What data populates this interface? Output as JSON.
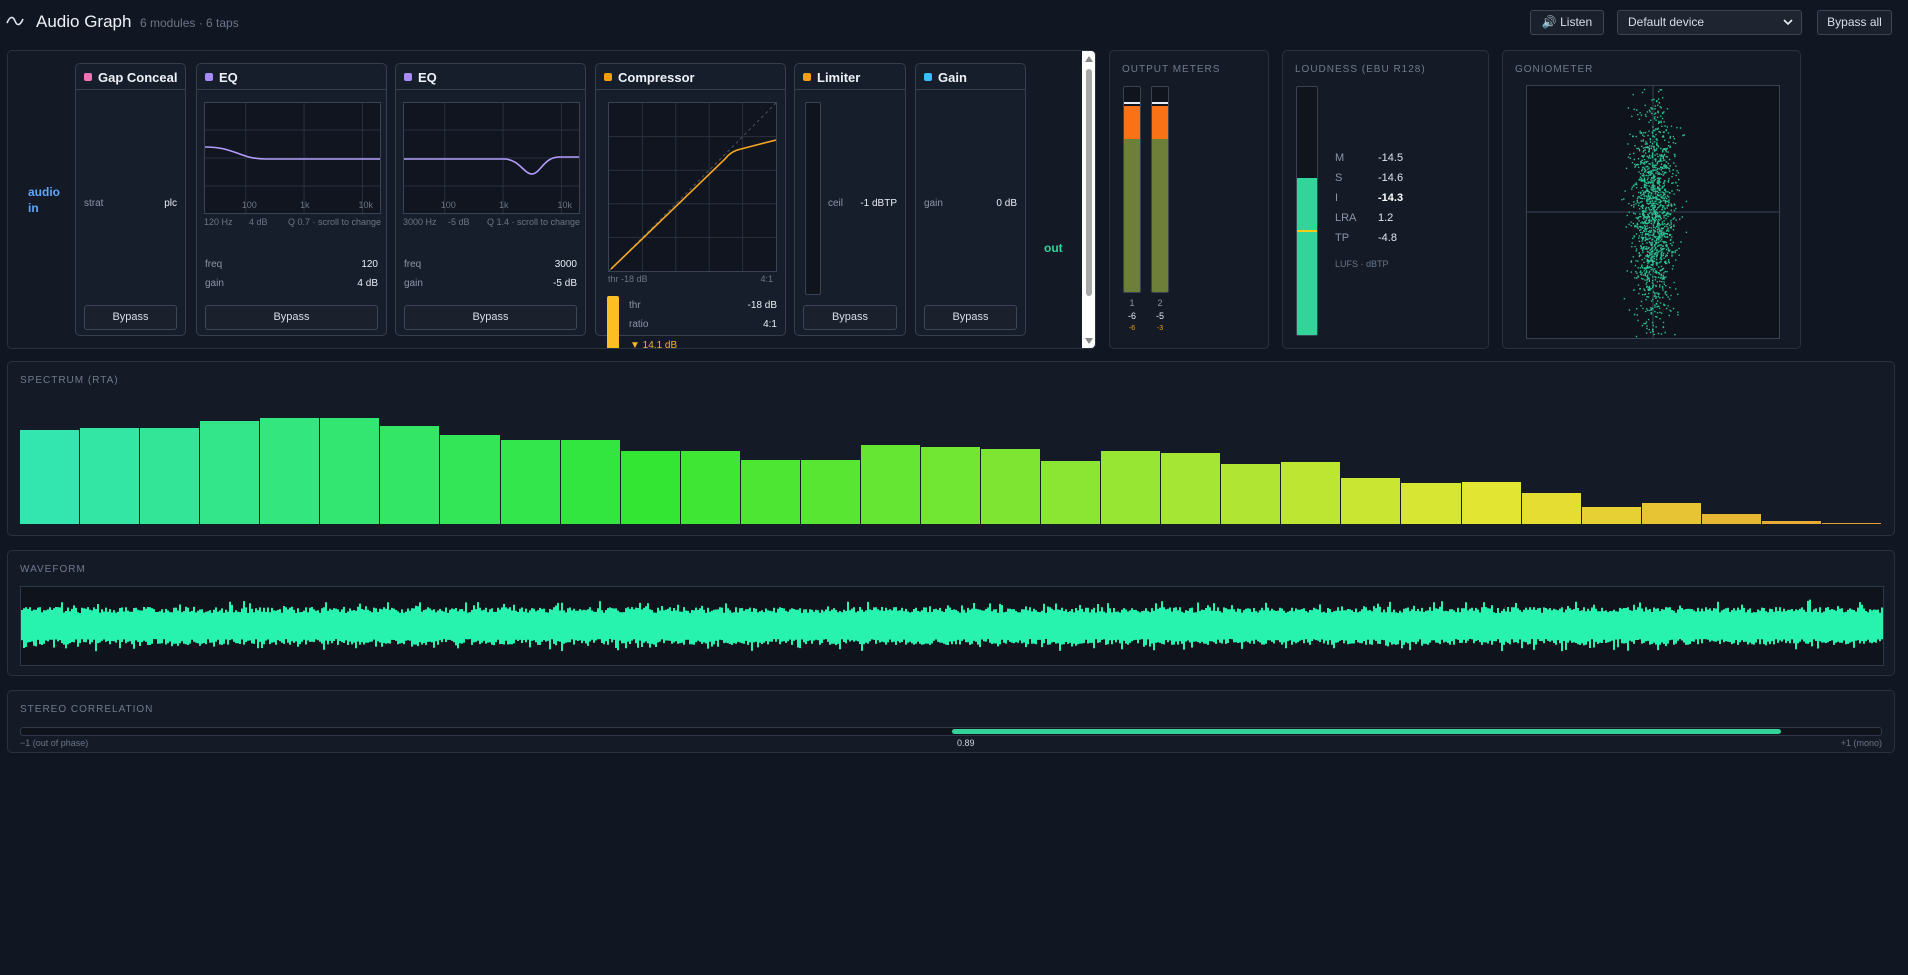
{
  "header": {
    "title": "Audio Graph",
    "subtitle": "6 modules · 6 taps",
    "listen": "🔊 Listen",
    "device": "Default device",
    "bypass_all": "Bypass all"
  },
  "graph": {
    "input": "audio in",
    "output": "out",
    "modules": [
      {
        "name": "Gap Conceal",
        "color": "#f472b6",
        "rows": [
          {
            "label": "strat",
            "value": "plc"
          }
        ],
        "bypass": "Bypass"
      },
      {
        "name": "EQ",
        "color": "#a78bfa",
        "axis_labels": [
          "100",
          "1k",
          "10k"
        ],
        "caption": [
          "120 Hz",
          "4 dB",
          "Q 0.7 · scroll to change"
        ],
        "rows": [
          {
            "label": "freq",
            "value": "120"
          },
          {
            "label": "gain",
            "value": "4 dB"
          }
        ],
        "bypass": "Bypass"
      },
      {
        "name": "EQ",
        "color": "#a78bfa",
        "axis_labels": [
          "100",
          "1k",
          "10k"
        ],
        "caption": [
          "3000 Hz",
          "-5 dB",
          "Q 1.4 · scroll to change"
        ],
        "rows": [
          {
            "label": "freq",
            "value": "3000"
          },
          {
            "label": "gain",
            "value": "-5 dB"
          }
        ],
        "bypass": "Bypass"
      },
      {
        "name": "Compressor",
        "color": "#f59e0b",
        "caption": [
          "thr -18 dB",
          "4:1"
        ],
        "rows": [
          {
            "label": "thr",
            "value": "-18 dB"
          },
          {
            "label": "ratio",
            "value": "4:1"
          }
        ],
        "reduction": "▼ 14.1 dB"
      },
      {
        "name": "Limiter",
        "color": "#f59e0b",
        "rows": [
          {
            "label": "ceil",
            "value": "-1 dBTP"
          }
        ],
        "bypass": "Bypass"
      },
      {
        "name": "Gain",
        "color": "#38bdf8",
        "rows": [
          {
            "label": "gain",
            "value": "0 dB"
          }
        ],
        "bypass": "Bypass"
      }
    ]
  },
  "output_meters": {
    "title": "OUTPUT METERS",
    "channels": [
      {
        "label": "1",
        "value": "-6",
        "peak": "-6"
      },
      {
        "label": "2",
        "value": "-5",
        "peak": "-3"
      }
    ]
  },
  "loudness": {
    "title": "LOUDNESS (EBU R128)",
    "rows": [
      {
        "label": "M",
        "value": "-14.5"
      },
      {
        "label": "S",
        "value": "-14.6"
      },
      {
        "label": "I",
        "value": "-14.3"
      },
      {
        "label": "LRA",
        "value": "1.2"
      },
      {
        "label": "TP",
        "value": "-4.8"
      }
    ],
    "unit": "LUFS · dBTP"
  },
  "goniometer": {
    "title": "GONIOMETER"
  },
  "spectrum": {
    "title": "SPECTRUM (RTA)",
    "values": [
      72,
      73,
      73,
      79,
      81,
      81,
      75,
      68,
      64,
      64,
      56,
      56,
      49,
      49,
      60,
      59,
      57,
      48,
      56,
      54,
      46,
      47,
      35,
      31,
      32,
      24,
      13,
      16,
      8,
      2,
      1
    ]
  },
  "waveform": {
    "title": "WAVEFORM"
  },
  "correlation": {
    "title": "STEREO CORRELATION",
    "value": 0.89,
    "scale": [
      {
        "value": -1,
        "label": "−1 (out of phase)"
      },
      {
        "value": 1,
        "label": "+1 (mono)"
      }
    ]
  }
}
